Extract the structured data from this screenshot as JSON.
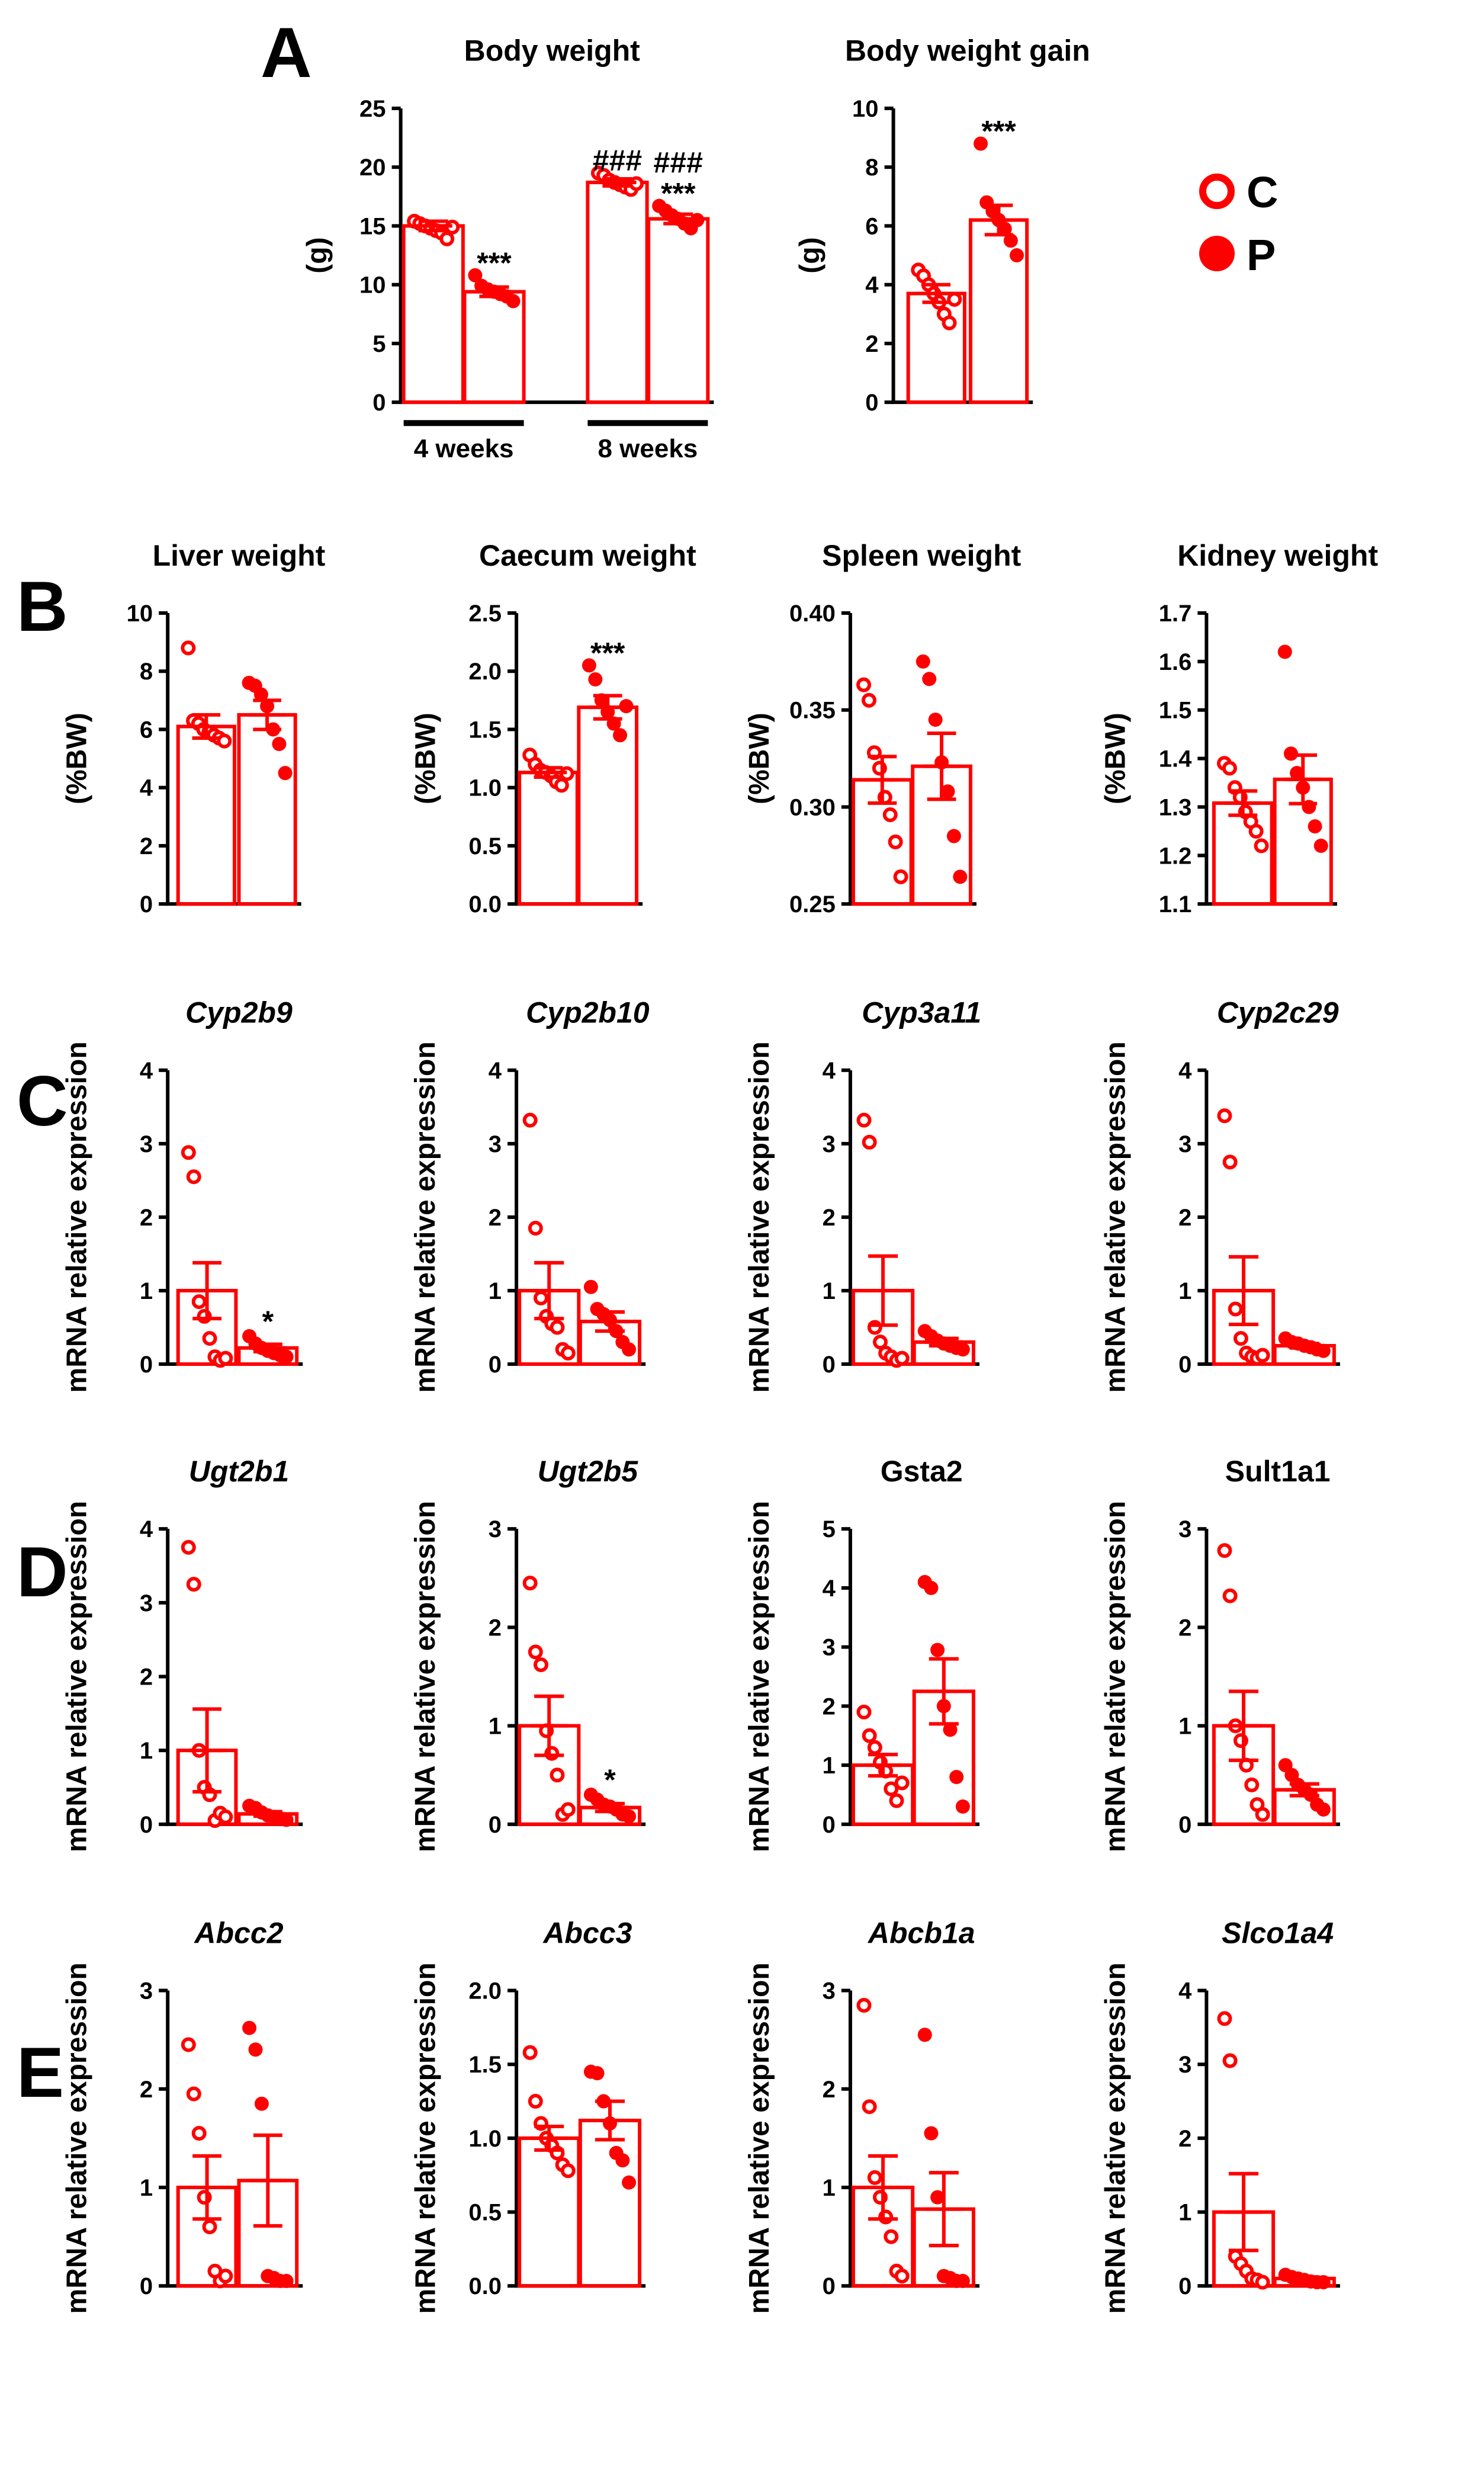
{
  "colors": {
    "accent": "#ff0000",
    "axis": "#000000",
    "text": "#000000"
  },
  "panel_labels": [
    "A",
    "B",
    "C",
    "D",
    "E"
  ],
  "legend": {
    "items": [
      {
        "label": "C",
        "marker": "open-circle"
      },
      {
        "label": "P",
        "marker": "filled-circle"
      }
    ]
  },
  "chart_data": [
    {
      "id": "bw",
      "panel": "A",
      "type": "bar",
      "title": "Body weight",
      "ylabel": "(g)",
      "ylim": [
        0,
        25
      ],
      "yticks": [
        0,
        5,
        10,
        15,
        20,
        25
      ],
      "tick_labels": [
        "0",
        "5",
        "10",
        "15",
        "20",
        "25"
      ],
      "group_labels": [
        "4 weeks",
        "8 weeks"
      ],
      "bars": [
        {
          "group": "C",
          "timepoint": "4 weeks",
          "mean": 15.0,
          "sem": 0.4,
          "points": [
            15.4,
            15.2,
            15.0,
            14.8,
            14.6,
            14.4,
            13.9,
            14.9
          ]
        },
        {
          "group": "P",
          "timepoint": "4 weeks",
          "mean": 9.4,
          "sem": 0.4,
          "points": [
            10.8,
            9.9,
            9.6,
            9.4,
            9.2,
            9.0,
            8.6
          ]
        },
        {
          "group": "C",
          "timepoint": "8 weeks",
          "mean": 18.7,
          "sem": 0.3,
          "points": [
            19.5,
            19.3,
            18.9,
            18.7,
            18.5,
            18.3,
            18.1,
            18.6
          ]
        },
        {
          "group": "P",
          "timepoint": "8 weeks",
          "mean": 15.6,
          "sem": 0.4,
          "points": [
            16.7,
            16.3,
            15.9,
            15.6,
            15.2,
            14.8,
            15.5
          ]
        }
      ],
      "annotations": [
        {
          "text": "***",
          "bar": 1
        },
        {
          "text": "###",
          "bar": 2
        },
        {
          "text": "###",
          "bar": 3
        },
        {
          "text": "***",
          "bar": 3
        }
      ]
    },
    {
      "id": "bwg",
      "panel": "A",
      "type": "bar",
      "title": "Body weight gain",
      "ylabel": "(g)",
      "ylim": [
        0,
        10
      ],
      "yticks": [
        0,
        2,
        4,
        6,
        8,
        10
      ],
      "tick_labels": [
        "0",
        "2",
        "4",
        "6",
        "8",
        "10"
      ],
      "bars": [
        {
          "group": "C",
          "mean": 3.7,
          "sem": 0.3,
          "points": [
            4.5,
            4.3,
            4.0,
            3.7,
            3.4,
            3.0,
            2.7,
            3.5
          ]
        },
        {
          "group": "P",
          "mean": 6.2,
          "sem": 0.5,
          "points": [
            8.8,
            6.8,
            6.5,
            6.2,
            5.9,
            5.5,
            5.0
          ]
        }
      ],
      "annotations": [
        {
          "text": "***",
          "bar": 1
        }
      ]
    },
    {
      "id": "liver",
      "panel": "B",
      "type": "bar",
      "title": "Liver weight",
      "ylabel": "(%BW)",
      "ylim": [
        0,
        10
      ],
      "yticks": [
        0,
        2,
        4,
        6,
        8,
        10
      ],
      "tick_labels": [
        "0",
        "2",
        "4",
        "6",
        "8",
        "10"
      ],
      "bars": [
        {
          "group": "C",
          "mean": 6.1,
          "sem": 0.4,
          "points": [
            8.8,
            6.3,
            6.2,
            6.0,
            5.9,
            5.8,
            5.7,
            5.6
          ]
        },
        {
          "group": "P",
          "mean": 6.5,
          "sem": 0.5,
          "points": [
            7.6,
            7.5,
            7.2,
            6.8,
            6.0,
            5.5,
            4.5
          ]
        }
      ],
      "annotations": []
    },
    {
      "id": "caecum",
      "panel": "B",
      "type": "bar",
      "title": "Caecum weight",
      "ylabel": "(%BW)",
      "ylim": [
        0,
        2.5
      ],
      "yticks": [
        0,
        0.5,
        1,
        1.5,
        2,
        2.5
      ],
      "tick_labels": [
        "0.0",
        "0.5",
        "1.0",
        "1.5",
        "2.0",
        "2.5"
      ],
      "bars": [
        {
          "group": "C",
          "mean": 1.13,
          "sem": 0.04,
          "points": [
            1.28,
            1.2,
            1.15,
            1.13,
            1.1,
            1.05,
            1.02,
            1.12
          ]
        },
        {
          "group": "P",
          "mean": 1.69,
          "sem": 0.1,
          "points": [
            2.05,
            1.93,
            1.75,
            1.65,
            1.55,
            1.45,
            1.7
          ]
        }
      ],
      "annotations": [
        {
          "text": "***",
          "bar": 1
        }
      ]
    },
    {
      "id": "spleen",
      "panel": "B",
      "type": "bar",
      "title": "Spleen weight",
      "ylabel": "(%BW)",
      "ylim": [
        0.25,
        0.4
      ],
      "yticks": [
        0.25,
        0.3,
        0.35,
        0.4
      ],
      "tick_labels": [
        "0.25",
        "0.30",
        "0.35",
        "0.40"
      ],
      "bars": [
        {
          "group": "C",
          "mean": 0.314,
          "sem": 0.012,
          "points": [
            0.363,
            0.355,
            0.328,
            0.32,
            0.305,
            0.296,
            0.282,
            0.264
          ]
        },
        {
          "group": "P",
          "mean": 0.321,
          "sem": 0.017,
          "points": [
            0.375,
            0.366,
            0.345,
            0.323,
            0.308,
            0.285,
            0.264
          ]
        }
      ],
      "annotations": []
    },
    {
      "id": "kidney",
      "panel": "B",
      "type": "bar",
      "title": "Kidney weight",
      "ylabel": "(%BW)",
      "ylim": [
        1.1,
        1.7
      ],
      "yticks": [
        1.1,
        1.2,
        1.3,
        1.4,
        1.5,
        1.6,
        1.7
      ],
      "tick_labels": [
        "1.1",
        "1.2",
        "1.3",
        "1.4",
        "1.5",
        "1.6",
        "1.7"
      ],
      "bars": [
        {
          "group": "C",
          "mean": 1.308,
          "sem": 0.025,
          "points": [
            1.39,
            1.38,
            1.34,
            1.32,
            1.29,
            1.27,
            1.25,
            1.22
          ]
        },
        {
          "group": "P",
          "mean": 1.357,
          "sem": 0.05,
          "points": [
            1.62,
            1.41,
            1.37,
            1.34,
            1.3,
            1.26,
            1.22
          ]
        }
      ],
      "annotations": []
    },
    {
      "id": "cyp2b9",
      "panel": "C",
      "type": "bar",
      "title": "Cyp2b9",
      "italic": true,
      "ylabel": "mRNA relative expression",
      "ylim": [
        0,
        4
      ],
      "yticks": [
        0,
        1,
        2,
        3,
        4
      ],
      "tick_labels": [
        "0",
        "1",
        "2",
        "3",
        "4"
      ],
      "bars": [
        {
          "group": "C",
          "mean": 1.0,
          "sem": 0.38,
          "points": [
            2.88,
            2.55,
            0.85,
            0.65,
            0.35,
            0.1,
            0.05,
            0.08
          ]
        },
        {
          "group": "P",
          "mean": 0.22,
          "sem": 0.05,
          "points": [
            0.38,
            0.28,
            0.22,
            0.18,
            0.15,
            0.12,
            0.1
          ]
        }
      ],
      "annotations": [
        {
          "text": "*",
          "bar": 1
        }
      ]
    },
    {
      "id": "cyp2b10",
      "panel": "C",
      "type": "bar",
      "title": "Cyp2b10",
      "italic": true,
      "ylabel": "mRNA relative expression",
      "ylim": [
        0,
        4
      ],
      "yticks": [
        0,
        1,
        2,
        3,
        4
      ],
      "tick_labels": [
        "0",
        "1",
        "2",
        "3",
        "4"
      ],
      "bars": [
        {
          "group": "C",
          "mean": 1.0,
          "sem": 0.38,
          "points": [
            3.32,
            1.85,
            0.9,
            0.65,
            0.55,
            0.5,
            0.2,
            0.15
          ]
        },
        {
          "group": "P",
          "mean": 0.58,
          "sem": 0.13,
          "points": [
            1.05,
            0.75,
            0.68,
            0.6,
            0.45,
            0.3,
            0.2
          ]
        }
      ],
      "annotations": []
    },
    {
      "id": "cyp3a11",
      "panel": "C",
      "type": "bar",
      "title": "Cyp3a11",
      "italic": true,
      "ylabel": "mRNA relative expression",
      "ylim": [
        0,
        4
      ],
      "yticks": [
        0,
        1,
        2,
        3,
        4
      ],
      "tick_labels": [
        "0",
        "1",
        "2",
        "3",
        "4"
      ],
      "bars": [
        {
          "group": "C",
          "mean": 1.0,
          "sem": 0.47,
          "points": [
            3.32,
            3.02,
            0.5,
            0.3,
            0.15,
            0.1,
            0.05,
            0.08
          ]
        },
        {
          "group": "P",
          "mean": 0.3,
          "sem": 0.05,
          "points": [
            0.45,
            0.38,
            0.32,
            0.28,
            0.25,
            0.22,
            0.2
          ]
        }
      ],
      "annotations": []
    },
    {
      "id": "cyp2c29",
      "panel": "C",
      "type": "bar",
      "title": "Cyp2c29",
      "italic": true,
      "ylabel": "mRNA relative expression",
      "ylim": [
        0,
        4
      ],
      "yticks": [
        0,
        1,
        2,
        3,
        4
      ],
      "tick_labels": [
        "0",
        "1",
        "2",
        "3",
        "4"
      ],
      "bars": [
        {
          "group": "C",
          "mean": 1.0,
          "sem": 0.46,
          "points": [
            3.38,
            2.75,
            0.75,
            0.35,
            0.15,
            0.1,
            0.08,
            0.12
          ]
        },
        {
          "group": "P",
          "mean": 0.25,
          "sem": 0.03,
          "points": [
            0.35,
            0.3,
            0.28,
            0.25,
            0.23,
            0.2,
            0.18
          ]
        }
      ],
      "annotations": []
    },
    {
      "id": "ugt2b1",
      "panel": "D",
      "type": "bar",
      "title": "Ugt2b1",
      "italic": true,
      "ylabel": "mRNA relative expression",
      "ylim": [
        0,
        4
      ],
      "yticks": [
        0,
        1,
        2,
        3,
        4
      ],
      "tick_labels": [
        "0",
        "1",
        "2",
        "3",
        "4"
      ],
      "bars": [
        {
          "group": "C",
          "mean": 1.0,
          "sem": 0.56,
          "points": [
            3.75,
            3.25,
            1.0,
            0.5,
            0.4,
            0.05,
            0.15,
            0.1
          ]
        },
        {
          "group": "P",
          "mean": 0.14,
          "sem": 0.03,
          "points": [
            0.25,
            0.22,
            0.16,
            0.12,
            0.1,
            0.08,
            0.06
          ]
        }
      ],
      "annotations": []
    },
    {
      "id": "ugt2b5",
      "panel": "D",
      "type": "bar",
      "title": "Ugt2b5",
      "italic": true,
      "ylabel": "mRNA relative expression",
      "ylim": [
        0,
        3
      ],
      "yticks": [
        0,
        1,
        2,
        3
      ],
      "tick_labels": [
        "0",
        "1",
        "2",
        "3"
      ],
      "bars": [
        {
          "group": "C",
          "mean": 1.0,
          "sem": 0.3,
          "points": [
            2.45,
            1.75,
            1.62,
            0.95,
            0.72,
            0.5,
            0.1,
            0.15
          ]
        },
        {
          "group": "P",
          "mean": 0.17,
          "sem": 0.04,
          "points": [
            0.3,
            0.25,
            0.2,
            0.18,
            0.15,
            0.1,
            0.08
          ]
        }
      ],
      "annotations": [
        {
          "text": "*",
          "bar": 1
        }
      ]
    },
    {
      "id": "gsta2",
      "panel": "D",
      "type": "bar",
      "title": "Gsta2",
      "italic": false,
      "ylabel": "mRNA relative expression",
      "ylim": [
        0,
        5
      ],
      "yticks": [
        0,
        1,
        2,
        3,
        4,
        5
      ],
      "tick_labels": [
        "0",
        "1",
        "2",
        "3",
        "4",
        "5"
      ],
      "bars": [
        {
          "group": "C",
          "mean": 1.0,
          "sem": 0.18,
          "points": [
            1.9,
            1.5,
            1.3,
            1.05,
            0.9,
            0.6,
            0.4,
            0.7
          ]
        },
        {
          "group": "P",
          "mean": 2.25,
          "sem": 0.55,
          "points": [
            4.1,
            4.0,
            2.95,
            2.0,
            1.6,
            0.8,
            0.3
          ]
        }
      ],
      "annotations": []
    },
    {
      "id": "sult1a1",
      "panel": "D",
      "type": "bar",
      "title": "Sult1a1",
      "italic": false,
      "ylabel": "mRNA relative expression",
      "ylim": [
        0,
        3
      ],
      "yticks": [
        0,
        1,
        2,
        3
      ],
      "tick_labels": [
        "0",
        "1",
        "2",
        "3"
      ],
      "bars": [
        {
          "group": "C",
          "mean": 1.0,
          "sem": 0.35,
          "points": [
            2.78,
            2.32,
            1.0,
            0.85,
            0.6,
            0.4,
            0.2,
            0.1
          ]
        },
        {
          "group": "P",
          "mean": 0.35,
          "sem": 0.06,
          "points": [
            0.6,
            0.5,
            0.4,
            0.35,
            0.3,
            0.2,
            0.15
          ]
        }
      ],
      "annotations": []
    },
    {
      "id": "abcc2",
      "panel": "E",
      "type": "bar",
      "title": "Abcc2",
      "italic": true,
      "ylabel": "mRNA relative expression",
      "ylim": [
        0,
        3
      ],
      "yticks": [
        0,
        1,
        2,
        3
      ],
      "tick_labels": [
        "0",
        "1",
        "2",
        "3"
      ],
      "bars": [
        {
          "group": "C",
          "mean": 1.0,
          "sem": 0.32,
          "points": [
            2.45,
            1.95,
            1.55,
            0.9,
            0.6,
            0.15,
            0.05,
            0.1
          ]
        },
        {
          "group": "P",
          "mean": 1.07,
          "sem": 0.46,
          "points": [
            2.62,
            2.4,
            1.85,
            0.1,
            0.08,
            0.05,
            0.05
          ]
        }
      ],
      "annotations": []
    },
    {
      "id": "abcc3",
      "panel": "E",
      "type": "bar",
      "title": "Abcc3",
      "italic": true,
      "ylabel": "mRNA relative expression",
      "ylim": [
        0,
        2
      ],
      "yticks": [
        0,
        0.5,
        1,
        1.5,
        2
      ],
      "tick_labels": [
        "0.0",
        "0.5",
        "1.0",
        "1.5",
        "2.0"
      ],
      "bars": [
        {
          "group": "C",
          "mean": 1.0,
          "sem": 0.08,
          "points": [
            1.58,
            1.25,
            1.1,
            1.0,
            0.95,
            0.9,
            0.82,
            0.78
          ]
        },
        {
          "group": "P",
          "mean": 1.12,
          "sem": 0.13,
          "points": [
            1.45,
            1.44,
            1.25,
            1.1,
            0.9,
            0.85,
            0.7
          ]
        }
      ],
      "annotations": []
    },
    {
      "id": "abcb1a",
      "panel": "E",
      "type": "bar",
      "title": "Abcb1a",
      "italic": true,
      "ylabel": "mRNA relative expression",
      "ylim": [
        0,
        3
      ],
      "yticks": [
        0,
        1,
        2,
        3
      ],
      "tick_labels": [
        "0",
        "1",
        "2",
        "3"
      ],
      "bars": [
        {
          "group": "C",
          "mean": 1.0,
          "sem": 0.32,
          "points": [
            2.85,
            1.82,
            1.1,
            0.9,
            0.7,
            0.5,
            0.15,
            0.1
          ]
        },
        {
          "group": "P",
          "mean": 0.78,
          "sem": 0.37,
          "points": [
            2.55,
            1.55,
            0.9,
            0.1,
            0.08,
            0.05,
            0.05
          ]
        }
      ],
      "annotations": []
    },
    {
      "id": "slco1a4",
      "panel": "E",
      "type": "bar",
      "title": "Slco1a4",
      "italic": true,
      "ylabel": "mRNA relative expression",
      "ylim": [
        0,
        4
      ],
      "yticks": [
        0,
        1,
        2,
        3,
        4
      ],
      "tick_labels": [
        "0",
        "1",
        "2",
        "3",
        "4"
      ],
      "bars": [
        {
          "group": "C",
          "mean": 1.0,
          "sem": 0.52,
          "points": [
            3.62,
            3.05,
            0.4,
            0.3,
            0.2,
            0.1,
            0.08,
            0.05
          ]
        },
        {
          "group": "P",
          "mean": 0.1,
          "sem": 0.02,
          "points": [
            0.15,
            0.12,
            0.1,
            0.08,
            0.06,
            0.05,
            0.05
          ]
        }
      ],
      "annotations": []
    }
  ]
}
